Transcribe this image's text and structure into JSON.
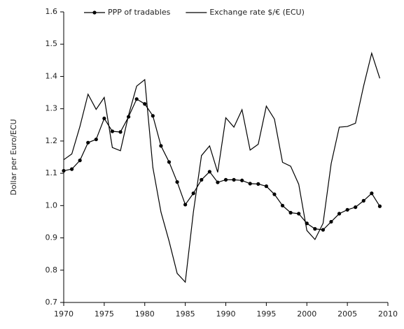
{
  "chart_data": {
    "type": "line",
    "y_label": "Dollar per Euro/ECU",
    "x": [
      1970,
      1971,
      1972,
      1973,
      1974,
      1975,
      1976,
      1977,
      1978,
      1979,
      1980,
      1981,
      1982,
      1983,
      1984,
      1985,
      1986,
      1987,
      1988,
      1989,
      1990,
      1991,
      1992,
      1993,
      1994,
      1995,
      1996,
      1997,
      1998,
      1999,
      2000,
      2001,
      2002,
      2003,
      2004,
      2005,
      2006,
      2007,
      2008,
      2009
    ],
    "series": [
      {
        "name": "PPP of tradables",
        "color": "#000000",
        "marker": true,
        "values": [
          1.108,
          1.113,
          1.14,
          1.195,
          1.205,
          1.27,
          1.23,
          1.228,
          1.275,
          1.33,
          1.315,
          1.278,
          1.185,
          1.135,
          1.073,
          1.003,
          1.038,
          1.08,
          1.105,
          1.072,
          1.08,
          1.08,
          1.078,
          1.068,
          1.067,
          1.06,
          1.035,
          1.0,
          0.978,
          0.975,
          0.945,
          0.928,
          0.925,
          0.95,
          0.975,
          0.987,
          0.995,
          1.015,
          1.038,
          0.998
        ]
      },
      {
        "name": "Exchange rate $/€ (ECU)",
        "color": "#000000",
        "marker": false,
        "values": [
          1.142,
          1.16,
          1.245,
          1.345,
          1.298,
          1.335,
          1.18,
          1.17,
          1.28,
          1.37,
          1.39,
          1.118,
          0.98,
          0.89,
          0.79,
          0.763,
          0.98,
          1.155,
          1.185,
          1.103,
          1.272,
          1.243,
          1.297,
          1.172,
          1.19,
          1.308,
          1.268,
          1.134,
          1.122,
          1.066,
          0.923,
          0.895,
          0.945,
          1.13,
          1.243,
          1.245,
          1.255,
          1.37,
          1.472,
          1.394
        ]
      }
    ],
    "xlim": [
      1970,
      2010
    ],
    "xticks": [
      1970,
      1975,
      1980,
      1985,
      1990,
      1995,
      2000,
      2005,
      2010
    ],
    "ylim": [
      0.7,
      1.6
    ],
    "yticks": [
      0.7,
      0.8,
      0.9,
      {
        "value": 1,
        "label": "1.0"
      },
      1.1,
      1.2,
      1.3,
      1.4,
      1.5,
      1.6
    ],
    "legend": "top"
  }
}
